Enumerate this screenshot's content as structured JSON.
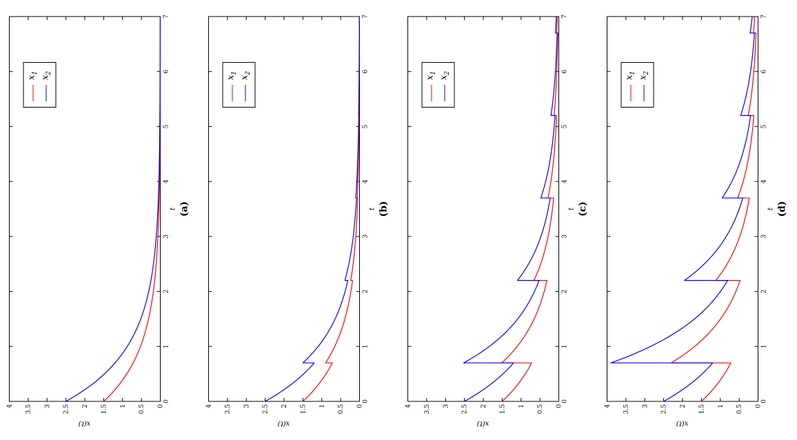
{
  "figure": {
    "background": "#ffffff"
  },
  "chart_data": {
    "type": "line",
    "xlabel": "t",
    "ylabel": "x(t)",
    "t_range": [
      0,
      7
    ],
    "x_range": [
      0,
      4
    ],
    "t_ticks": [
      0,
      1,
      2,
      3,
      4,
      5,
      6,
      7
    ],
    "x_ticks": [
      0,
      0.5,
      1,
      1.5,
      2,
      2.5,
      3,
      3.5,
      4
    ],
    "interpolation": "exponential",
    "impulse_times": [
      0.7,
      2.2,
      3.7,
      5.2,
      6.7
    ],
    "legend": [
      {
        "base": "x",
        "sub": "1",
        "color": "#ff0000"
      },
      {
        "base": "x",
        "sub": "2",
        "color": "#0000ff"
      }
    ],
    "panels": [
      {
        "id": "a",
        "caption": "(a)",
        "series": [
          {
            "name": "x1",
            "color": "#ff0000",
            "points": [
              [
                0,
                1.5
              ],
              [
                1,
                0.525
              ],
              [
                2,
                0.184
              ],
              [
                3,
                0.064
              ],
              [
                4,
                0.022
              ],
              [
                5,
                0.0078
              ],
              [
                6,
                0.0027
              ],
              [
                7,
                0.001
              ]
            ]
          },
          {
            "name": "x2",
            "color": "#0000ff",
            "points": [
              [
                0,
                2.5
              ],
              [
                1,
                0.875
              ],
              [
                2,
                0.306
              ],
              [
                3,
                0.107
              ],
              [
                4,
                0.037
              ],
              [
                5,
                0.013
              ],
              [
                6,
                0.0046
              ],
              [
                7,
                0.0016
              ]
            ]
          }
        ]
      },
      {
        "id": "b",
        "caption": "(b)",
        "series": [
          {
            "name": "x1",
            "color": "#ff0000",
            "points": [
              [
                0,
                1.5
              ],
              [
                0.7,
                0.72
              ],
              [
                0.7,
                0.9
              ],
              [
                2.2,
                0.186
              ],
              [
                2.2,
                0.233
              ],
              [
                3.7,
                0.048
              ],
              [
                3.7,
                0.06
              ],
              [
                5.2,
                0.0124
              ],
              [
                5.2,
                0.0155
              ],
              [
                6.7,
                0.0032
              ],
              [
                6.7,
                0.004
              ],
              [
                7,
                0.0029
              ]
            ]
          },
          {
            "name": "x2",
            "color": "#0000ff",
            "points": [
              [
                0,
                2.5
              ],
              [
                0.7,
                1.2
              ],
              [
                0.7,
                1.5
              ],
              [
                2.2,
                0.31
              ],
              [
                2.2,
                0.388
              ],
              [
                3.7,
                0.08
              ],
              [
                3.7,
                0.1
              ],
              [
                5.2,
                0.0207
              ],
              [
                5.2,
                0.026
              ],
              [
                6.7,
                0.0054
              ],
              [
                6.7,
                0.0067
              ],
              [
                7,
                0.0049
              ]
            ]
          }
        ]
      },
      {
        "id": "c",
        "caption": "(c)",
        "series": [
          {
            "name": "x1",
            "color": "#ff0000",
            "points": [
              [
                0,
                1.5
              ],
              [
                0.7,
                0.72
              ],
              [
                0.7,
                1.51
              ],
              [
                2.2,
                0.313
              ],
              [
                2.2,
                0.657
              ],
              [
                3.7,
                0.136
              ],
              [
                3.7,
                0.286
              ],
              [
                5.2,
                0.059
              ],
              [
                5.2,
                0.124
              ],
              [
                6.7,
                0.0257
              ],
              [
                6.7,
                0.054
              ],
              [
                7,
                0.0394
              ]
            ]
          },
          {
            "name": "x2",
            "color": "#0000ff",
            "points": [
              [
                0,
                2.5
              ],
              [
                0.7,
                1.2
              ],
              [
                0.7,
                2.52
              ],
              [
                2.2,
                0.522
              ],
              [
                2.2,
                1.096
              ],
              [
                3.7,
                0.227
              ],
              [
                3.7,
                0.477
              ],
              [
                5.2,
                0.0988
              ],
              [
                5.2,
                0.207
              ],
              [
                6.7,
                0.0429
              ],
              [
                6.7,
                0.09
              ],
              [
                7,
                0.0657
              ]
            ]
          }
        ]
      },
      {
        "id": "d",
        "caption": "(d)",
        "series": [
          {
            "name": "x1",
            "color": "#ff0000",
            "points": [
              [
                0,
                1.5
              ],
              [
                0.7,
                0.72
              ],
              [
                0.7,
                2.3
              ],
              [
                2.2,
                0.476
              ],
              [
                2.2,
                1.12
              ],
              [
                3.7,
                0.232
              ],
              [
                3.7,
                0.54
              ],
              [
                5.2,
                0.112
              ],
              [
                5.2,
                0.26
              ],
              [
                6.7,
                0.0538
              ],
              [
                6.7,
                0.12
              ],
              [
                7,
                0.088
              ]
            ]
          },
          {
            "name": "x2",
            "color": "#0000ff",
            "points": [
              [
                0,
                2.5
              ],
              [
                0.7,
                1.2
              ],
              [
                0.7,
                3.9
              ],
              [
                2.2,
                0.807
              ],
              [
                2.2,
                1.95
              ],
              [
                3.7,
                0.404
              ],
              [
                3.7,
                0.95
              ],
              [
                5.2,
                0.197
              ],
              [
                5.2,
                0.46
              ],
              [
                6.7,
                0.0952
              ],
              [
                6.7,
                0.21
              ],
              [
                7,
                0.153
              ]
            ]
          }
        ]
      }
    ]
  }
}
